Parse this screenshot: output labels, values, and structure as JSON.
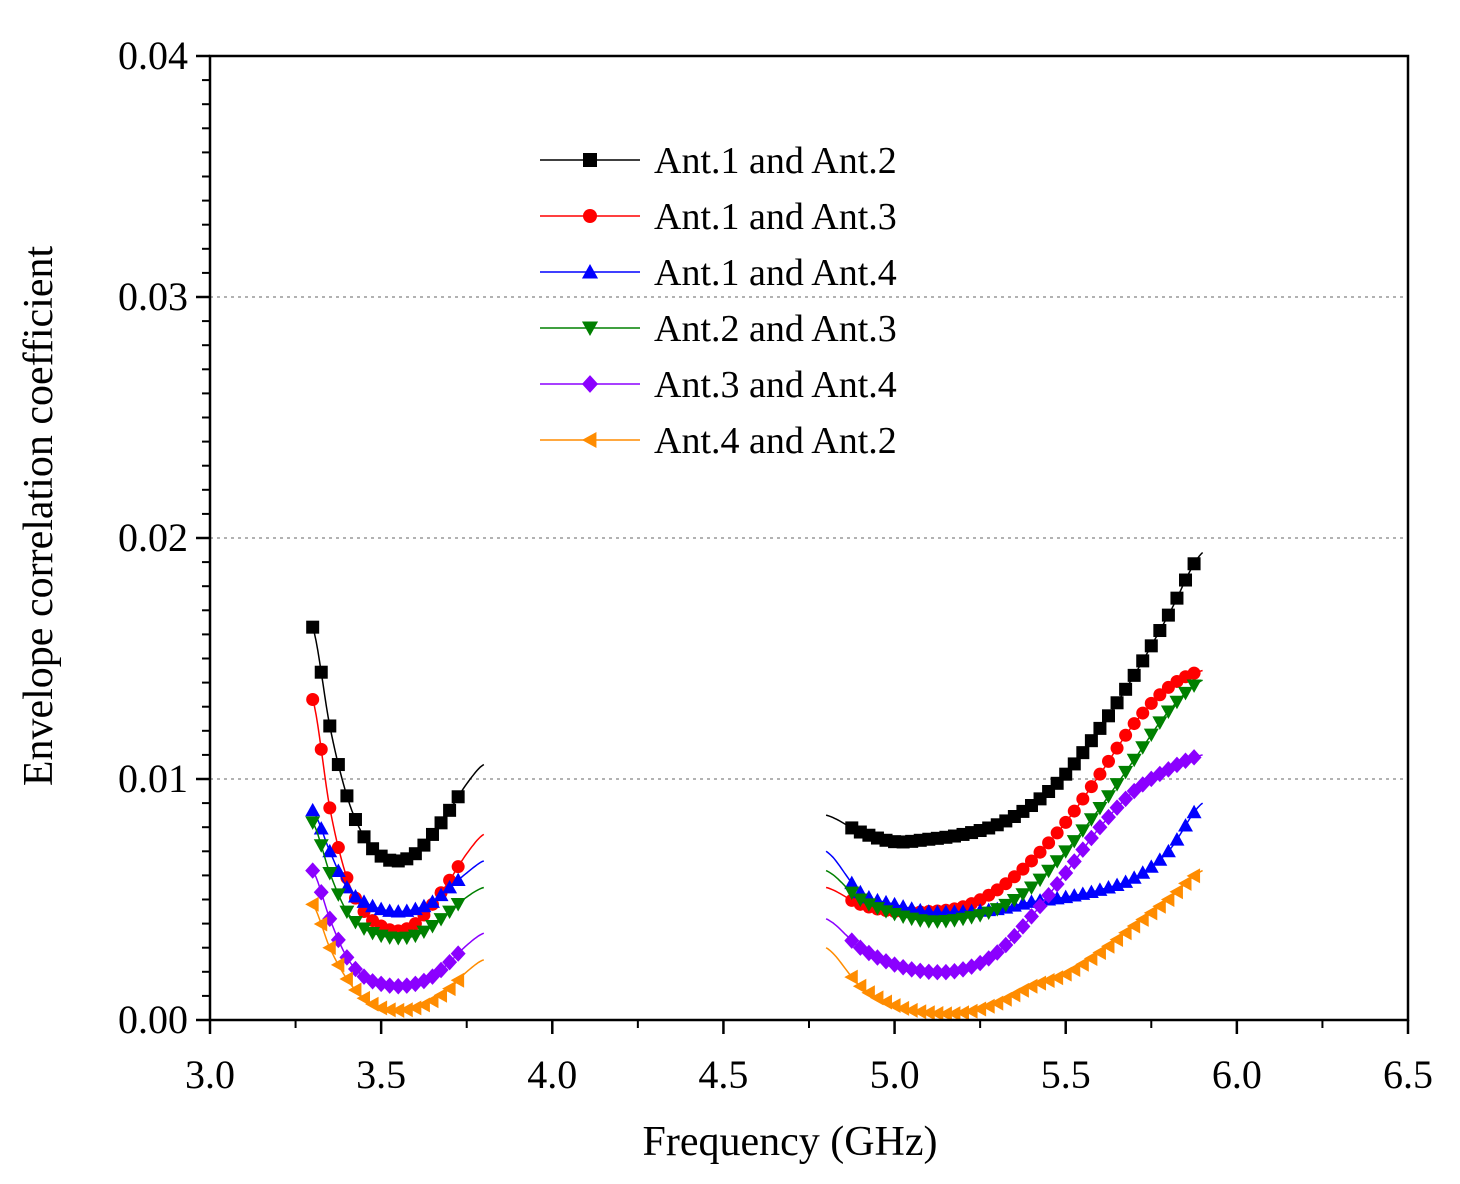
{
  "chart_data": {
    "type": "line",
    "title": "",
    "xlabel": "Frequency (GHz)",
    "ylabel": "Envelope correlation coefficient",
    "xlim": [
      3.0,
      6.5
    ],
    "ylim": [
      0.0,
      0.04
    ],
    "x_ticks": [
      "3.0",
      "3.5",
      "4.0",
      "4.5",
      "5.0",
      "5.5",
      "6.0",
      "6.5"
    ],
    "y_ticks": [
      "0.00",
      "0.01",
      "0.02",
      "0.03",
      "0.04"
    ],
    "grid": "horizontal dotted at 0.01, 0.02, 0.03",
    "legend_position": "top-center",
    "series": [
      {
        "name": "Ant.1 and Ant.2",
        "color": "#000000",
        "marker": "square",
        "band1": {
          "x": [
            3.3,
            3.35,
            3.4,
            3.45,
            3.5,
            3.55,
            3.6,
            3.65,
            3.7,
            3.75,
            3.8
          ],
          "y": [
            0.0163,
            0.0122,
            0.0093,
            0.0076,
            0.0068,
            0.0066,
            0.0069,
            0.0077,
            0.0087,
            0.0098,
            0.0106
          ]
        },
        "band2": {
          "x": [
            4.8,
            4.9,
            5.0,
            5.1,
            5.2,
            5.3,
            5.4,
            5.5,
            5.6,
            5.7,
            5.8,
            5.9
          ],
          "y": [
            0.0085,
            0.0078,
            0.0074,
            0.0075,
            0.0077,
            0.0081,
            0.0089,
            0.0102,
            0.0121,
            0.0143,
            0.0168,
            0.0194
          ]
        }
      },
      {
        "name": "Ant.1 and Ant.3",
        "color": "#ff0000",
        "marker": "circle",
        "band1": {
          "x": [
            3.3,
            3.35,
            3.4,
            3.45,
            3.5,
            3.55,
            3.6,
            3.65,
            3.7,
            3.75,
            3.8
          ],
          "y": [
            0.0133,
            0.0088,
            0.0059,
            0.0045,
            0.0039,
            0.0037,
            0.004,
            0.0048,
            0.0058,
            0.0069,
            0.0077
          ]
        },
        "band2": {
          "x": [
            4.8,
            4.9,
            5.0,
            5.1,
            5.2,
            5.3,
            5.4,
            5.5,
            5.6,
            5.7,
            5.8,
            5.9
          ],
          "y": [
            0.0055,
            0.0048,
            0.0045,
            0.0045,
            0.0047,
            0.0054,
            0.0066,
            0.0082,
            0.0102,
            0.0123,
            0.0138,
            0.0145
          ]
        }
      },
      {
        "name": "Ant.1 and Ant.4",
        "color": "#0000ff",
        "marker": "triangle-up",
        "band1": {
          "x": [
            3.3,
            3.35,
            3.4,
            3.45,
            3.5,
            3.55,
            3.6,
            3.65,
            3.7,
            3.75,
            3.8
          ],
          "y": [
            0.0087,
            0.007,
            0.0055,
            0.0049,
            0.0046,
            0.0045,
            0.0046,
            0.0049,
            0.0055,
            0.0061,
            0.0066
          ]
        },
        "band2": {
          "x": [
            4.8,
            4.9,
            5.0,
            5.1,
            5.2,
            5.3,
            5.4,
            5.5,
            5.6,
            5.7,
            5.8,
            5.9
          ],
          "y": [
            0.007,
            0.0053,
            0.0048,
            0.0045,
            0.0045,
            0.0046,
            0.0049,
            0.0051,
            0.0054,
            0.0059,
            0.007,
            0.009
          ]
        }
      },
      {
        "name": "Ant.2 and Ant.3",
        "color": "#008000",
        "marker": "triangle-down",
        "band1": {
          "x": [
            3.3,
            3.35,
            3.4,
            3.45,
            3.5,
            3.55,
            3.6,
            3.65,
            3.7,
            3.75,
            3.8
          ],
          "y": [
            0.0082,
            0.0061,
            0.0045,
            0.0038,
            0.0035,
            0.0034,
            0.0035,
            0.0039,
            0.0045,
            0.0051,
            0.0055
          ]
        },
        "band2": {
          "x": [
            4.8,
            4.9,
            5.0,
            5.1,
            5.2,
            5.3,
            5.4,
            5.5,
            5.6,
            5.7,
            5.8,
            5.9
          ],
          "y": [
            0.0062,
            0.005,
            0.0044,
            0.0041,
            0.0042,
            0.0046,
            0.0055,
            0.007,
            0.0088,
            0.0108,
            0.0128,
            0.0141
          ]
        }
      },
      {
        "name": "Ant.3 and Ant.4",
        "color": "#8b00ff",
        "marker": "diamond",
        "band1": {
          "x": [
            3.3,
            3.35,
            3.4,
            3.45,
            3.5,
            3.55,
            3.6,
            3.65,
            3.7,
            3.75,
            3.8
          ],
          "y": [
            0.0062,
            0.0042,
            0.0026,
            0.0018,
            0.0015,
            0.0014,
            0.0015,
            0.0018,
            0.0024,
            0.0031,
            0.0036
          ]
        },
        "band2": {
          "x": [
            4.8,
            4.9,
            5.0,
            5.1,
            5.2,
            5.3,
            5.4,
            5.5,
            5.6,
            5.7,
            5.8,
            5.9
          ],
          "y": [
            0.0042,
            0.003,
            0.0023,
            0.002,
            0.0021,
            0.0028,
            0.0043,
            0.0061,
            0.008,
            0.0095,
            0.0104,
            0.011
          ]
        }
      },
      {
        "name": "Ant.4 and Ant.2",
        "color": "#ff8c00",
        "marker": "triangle-left",
        "band1": {
          "x": [
            3.3,
            3.35,
            3.4,
            3.45,
            3.5,
            3.55,
            3.6,
            3.65,
            3.7,
            3.75,
            3.8
          ],
          "y": [
            0.0048,
            0.003,
            0.0017,
            0.0009,
            0.0005,
            0.0004,
            0.0005,
            0.0008,
            0.0013,
            0.002,
            0.0025
          ]
        },
        "band2": {
          "x": [
            4.8,
            4.9,
            5.0,
            5.1,
            5.2,
            5.3,
            5.4,
            5.5,
            5.6,
            5.7,
            5.8,
            5.9
          ],
          "y": [
            0.003,
            0.0014,
            0.0006,
            0.0003,
            0.0003,
            0.0007,
            0.0014,
            0.0019,
            0.0028,
            0.0039,
            0.005,
            0.0062
          ]
        }
      }
    ]
  }
}
